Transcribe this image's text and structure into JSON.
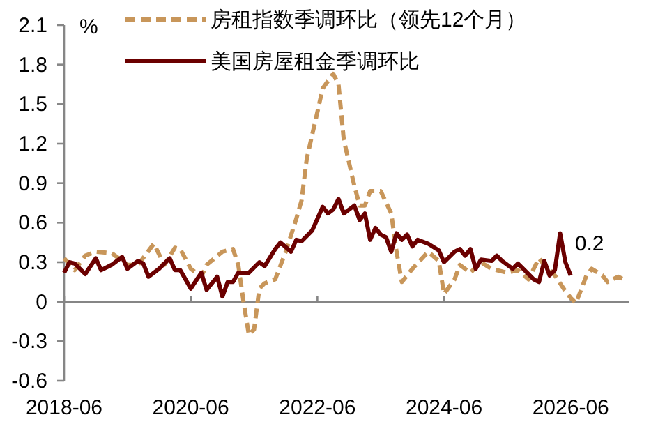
{
  "chart_data": {
    "type": "line",
    "ylabel": "%",
    "xlim": [
      "2018-06",
      "2027-05"
    ],
    "xticks": [
      "2018-06",
      "2020-06",
      "2022-06",
      "2024-06",
      "2026-06"
    ],
    "ylim": [
      -0.6,
      2.1
    ],
    "yticks": [
      -0.6,
      -0.3,
      0,
      0.3,
      0.6,
      0.9,
      1.2,
      1.5,
      1.8,
      2.1
    ],
    "legend": "top",
    "marker": "none",
    "annotations": [
      {
        "text": "0.2",
        "x": "2026-06",
        "y": 0.2
      }
    ],
    "series": [
      {
        "name": "房租指数季调环比（领先12个月）",
        "color": "#c8965a",
        "line_style": "dashed",
        "x": [
          "2018-06",
          "2018-08",
          "2018-10",
          "2018-12",
          "2019-03",
          "2019-06",
          "2019-08",
          "2019-11",
          "2020-01",
          "2020-03",
          "2020-04",
          "2020-06",
          "2020-08",
          "2020-09",
          "2020-12",
          "2021-02",
          "2021-03",
          "2021-04",
          "2021-05",
          "2021-06",
          "2021-07",
          "2021-08",
          "2021-10",
          "2021-12",
          "2022-02",
          "2022-03",
          "2022-04",
          "2022-06",
          "2022-07",
          "2022-09",
          "2022-10",
          "2022-11",
          "2023-01",
          "2023-02",
          "2023-03",
          "2023-04",
          "2023-06",
          "2023-08",
          "2023-09",
          "2023-10",
          "2023-12",
          "2024-03",
          "2024-05",
          "2024-06",
          "2024-08",
          "2024-09",
          "2024-11",
          "2025-01",
          "2025-03",
          "2025-06",
          "2025-08",
          "2025-10",
          "2025-12",
          "2026-01",
          "2026-03",
          "2026-05",
          "2026-06",
          "2026-07",
          "2026-09",
          "2026-10",
          "2026-12",
          "2027-01",
          "2027-03",
          "2027-04"
        ],
        "values": [
          0.33,
          0.24,
          0.35,
          0.38,
          0.37,
          0.28,
          0.28,
          0.44,
          0.28,
          0.41,
          0.4,
          0.25,
          0.19,
          0.28,
          0.38,
          0.4,
          0.28,
          0.0,
          -0.25,
          -0.21,
          0.1,
          0.14,
          0.17,
          0.38,
          0.63,
          0.77,
          1.09,
          1.44,
          1.62,
          1.73,
          1.65,
          1.23,
          0.88,
          0.73,
          0.73,
          0.84,
          0.84,
          0.67,
          0.38,
          0.15,
          0.25,
          0.38,
          0.31,
          0.06,
          0.17,
          0.28,
          0.22,
          0.3,
          0.25,
          0.22,
          0.24,
          0.17,
          0.33,
          0.28,
          0.2,
          0.08,
          0.03,
          -0.01,
          0.2,
          0.25,
          0.2,
          0.15,
          0.19,
          0.17
        ]
      },
      {
        "name": "美国房屋租金季调环比",
        "color": "#6b0000",
        "line_style": "solid",
        "x": [
          "2018-06",
          "2018-07",
          "2018-08",
          "2018-10",
          "2018-12",
          "2019-01",
          "2019-03",
          "2019-05",
          "2019-06",
          "2019-08",
          "2019-09",
          "2019-10",
          "2019-12",
          "2020-02",
          "2020-03",
          "2020-04",
          "2020-06",
          "2020-08",
          "2020-09",
          "2020-11",
          "2020-12",
          "2021-01",
          "2021-02",
          "2021-03",
          "2021-05",
          "2021-07",
          "2021-08",
          "2021-10",
          "2021-11",
          "2022-01",
          "2022-02",
          "2022-03",
          "2022-05",
          "2022-07",
          "2022-08",
          "2022-09",
          "2022-10",
          "2022-11",
          "2023-01",
          "2023-02",
          "2023-03",
          "2023-04",
          "2023-05",
          "2023-06",
          "2023-07",
          "2023-08",
          "2023-09",
          "2023-10",
          "2023-11",
          "2023-12",
          "2024-01",
          "2024-03",
          "2024-05",
          "2024-06",
          "2024-08",
          "2024-09",
          "2024-10",
          "2024-11",
          "2024-12",
          "2025-01",
          "2025-03",
          "2025-04",
          "2025-05",
          "2025-07",
          "2025-08",
          "2025-09",
          "2025-11",
          "2025-12",
          "2026-01",
          "2026-02",
          "2026-03",
          "2026-04",
          "2026-05",
          "2026-06"
        ],
        "values": [
          0.22,
          0.3,
          0.29,
          0.21,
          0.33,
          0.24,
          0.28,
          0.34,
          0.25,
          0.31,
          0.29,
          0.19,
          0.25,
          0.33,
          0.24,
          0.24,
          0.1,
          0.22,
          0.09,
          0.19,
          0.04,
          0.15,
          0.15,
          0.22,
          0.22,
          0.3,
          0.27,
          0.4,
          0.45,
          0.38,
          0.47,
          0.46,
          0.54,
          0.72,
          0.67,
          0.7,
          0.78,
          0.67,
          0.73,
          0.62,
          0.67,
          0.47,
          0.56,
          0.51,
          0.49,
          0.38,
          0.52,
          0.47,
          0.51,
          0.42,
          0.47,
          0.44,
          0.39,
          0.3,
          0.38,
          0.4,
          0.35,
          0.4,
          0.25,
          0.32,
          0.31,
          0.35,
          0.31,
          0.25,
          0.29,
          0.25,
          0.17,
          0.15,
          0.31,
          0.2,
          0.24,
          0.52,
          0.3,
          0.2
        ]
      }
    ]
  }
}
